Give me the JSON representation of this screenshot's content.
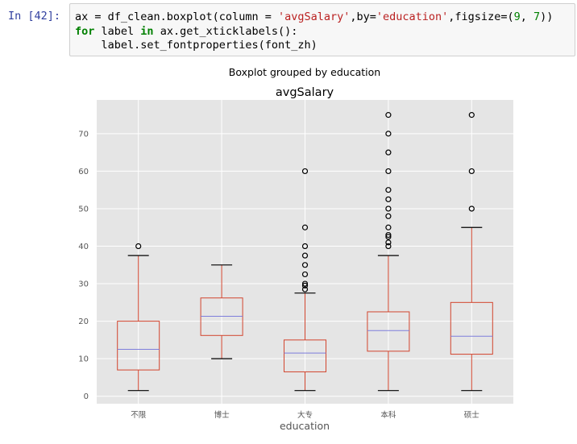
{
  "cell": {
    "prompt": "In [42]:",
    "lines": [
      [
        {
          "t": "ax = df_clean.boxplot(column = ",
          "c": ""
        },
        {
          "t": "'avgSalary'",
          "c": "str"
        },
        {
          "t": ",by=",
          "c": ""
        },
        {
          "t": "'education'",
          "c": "str"
        },
        {
          "t": ",figsize=(",
          "c": ""
        },
        {
          "t": "9",
          "c": "num"
        },
        {
          "t": ", ",
          "c": ""
        },
        {
          "t": "7",
          "c": "num"
        },
        {
          "t": "))",
          "c": ""
        }
      ],
      [
        {
          "t": "for",
          "c": "kw"
        },
        {
          "t": " label ",
          "c": ""
        },
        {
          "t": "in",
          "c": "kw"
        },
        {
          "t": " ax.get_xticklabels():",
          "c": ""
        }
      ],
      [
        {
          "t": "    label.set_fontproperties(font_zh)",
          "c": ""
        }
      ]
    ]
  },
  "chart_data": {
    "type": "box",
    "suptitle": "Boxplot grouped by education",
    "title": "avgSalary",
    "xlabel": "education",
    "ylabel": "",
    "ylim": [
      -2,
      79
    ],
    "yticks": [
      0,
      10,
      20,
      30,
      40,
      50,
      60,
      70
    ],
    "grid": true,
    "categories": [
      "不限",
      "博士",
      "大专",
      "本科",
      "硕士"
    ],
    "boxes": [
      {
        "whislo": 1.5,
        "q1": 7,
        "med": 12.5,
        "q3": 20,
        "whishi": 37.5,
        "fliers": [
          40
        ]
      },
      {
        "whislo": 10,
        "q1": 16.2,
        "med": 21.3,
        "q3": 26.2,
        "whishi": 35,
        "fliers": []
      },
      {
        "whislo": 1.5,
        "q1": 6.5,
        "med": 11.5,
        "q3": 15,
        "whishi": 27.5,
        "fliers": [
          28.5,
          29.5,
          30,
          32.5,
          35,
          37.5,
          40,
          45,
          60
        ]
      },
      {
        "whislo": 1.5,
        "q1": 12,
        "med": 17.5,
        "q3": 22.5,
        "whishi": 37.5,
        "fliers": [
          40,
          41,
          42.5,
          43,
          45,
          48,
          50,
          52.5,
          55,
          60,
          65,
          70,
          75
        ]
      },
      {
        "whislo": 1.5,
        "q1": 11.2,
        "med": 16,
        "q3": 25,
        "whishi": 45,
        "fliers": [
          50,
          60,
          75
        ]
      }
    ],
    "colors": {
      "axes_bg": "#e5e5e5",
      "grid": "#ffffff",
      "box": "#d2452e",
      "median": "#7e7edb",
      "whisker_cap": "#000000",
      "flier": "#000000",
      "tick_label": "#555555",
      "text": "#000000"
    }
  }
}
